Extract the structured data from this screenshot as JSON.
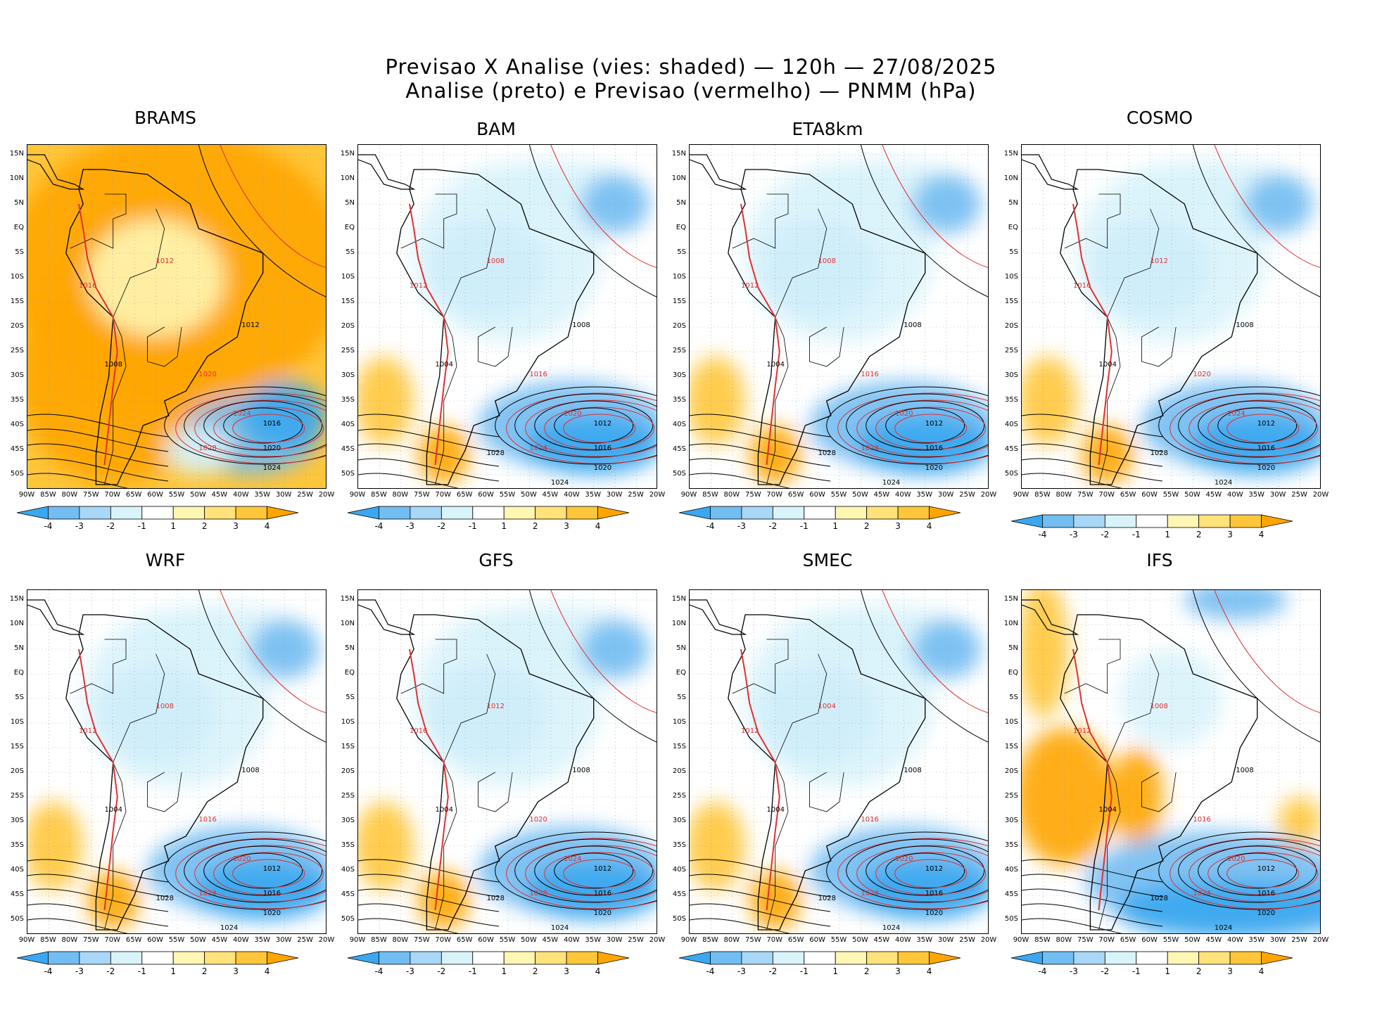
{
  "title": {
    "line1": "Previsao X Analise (vies: shaded) — 120h — 27/08/2025",
    "line2": "Analise (preto) e Previsao (vermelho) — PNMM (hPa)"
  },
  "colors": {
    "neg4": "#3aa7f0",
    "neg3": "#72bdf2",
    "neg2": "#a8d7f7",
    "neg1": "#d9f3fb",
    "zero": "#ffffff",
    "pos1": "#fff6b3",
    "pos2": "#ffe27a",
    "pos3": "#ffc63a",
    "pos4": "#ffa500",
    "analysis_contour": "#000000",
    "forecast_contour": "#e03030"
  },
  "axes": {
    "lat_labels": [
      "15N",
      "10N",
      "5N",
      "EQ",
      "5S",
      "10S",
      "15S",
      "20S",
      "25S",
      "30S",
      "35S",
      "40S",
      "45S",
      "50S"
    ],
    "lon_labels": [
      "90W",
      "85W",
      "80W",
      "75W",
      "70W",
      "65W",
      "60W",
      "55W",
      "50W",
      "45W",
      "40W",
      "35W",
      "30W",
      "25W",
      "20W"
    ]
  },
  "colorbar": {
    "ticks": [
      "-4",
      "-3",
      "-2",
      "-1",
      "1",
      "2",
      "3",
      "4"
    ]
  },
  "chart_data": [
    {
      "type": "heatmap",
      "model": "BRAMS",
      "title": "BRAMS",
      "bias_tendency": "warm",
      "analysis_labels": [
        "1008",
        "1012",
        "1016",
        "1020",
        "1024"
      ],
      "forecast_labels": [
        "1012",
        "1016",
        "1020",
        "1024",
        "1028"
      ]
    },
    {
      "type": "heatmap",
      "model": "BAM",
      "title": "BAM",
      "bias_tendency": "cool",
      "analysis_labels": [
        "1004",
        "1008",
        "1012",
        "1016",
        "1020",
        "1024",
        "1028"
      ],
      "forecast_labels": [
        "1008",
        "1012",
        "1016",
        "1020",
        "1024"
      ]
    },
    {
      "type": "heatmap",
      "model": "ETA8km",
      "title": "ETA8km",
      "bias_tendency": "cool",
      "analysis_labels": [
        "1004",
        "1008",
        "1012",
        "1016",
        "1020",
        "1024",
        "1028"
      ],
      "forecast_labels": [
        "1008",
        "1012",
        "1016",
        "1020",
        "1024"
      ]
    },
    {
      "type": "heatmap",
      "model": "COSMO",
      "title": "COSMO",
      "bias_tendency": "cool",
      "analysis_labels": [
        "1004",
        "1008",
        "1012",
        "1016",
        "1020",
        "1024",
        "1028"
      ],
      "forecast_labels": [
        "1012",
        "1016",
        "1020",
        "1024"
      ]
    },
    {
      "type": "heatmap",
      "model": "WRF",
      "title": "WRF",
      "bias_tendency": "cool",
      "analysis_labels": [
        "1004",
        "1008",
        "1012",
        "1016",
        "1020",
        "1024",
        "1028"
      ],
      "forecast_labels": [
        "1008",
        "1012",
        "1016",
        "1020",
        "1024"
      ]
    },
    {
      "type": "heatmap",
      "model": "GFS",
      "title": "GFS",
      "bias_tendency": "cool",
      "analysis_labels": [
        "1004",
        "1008",
        "1012",
        "1016",
        "1020",
        "1024",
        "1028"
      ],
      "forecast_labels": [
        "1012",
        "1016",
        "1020",
        "1024",
        "1028"
      ]
    },
    {
      "type": "heatmap",
      "model": "SMEC",
      "title": "SMEC",
      "bias_tendency": "cool",
      "analysis_labels": [
        "1004",
        "1008",
        "1012",
        "1016",
        "1020",
        "1024",
        "1028"
      ],
      "forecast_labels": [
        "1004",
        "1012",
        "1016",
        "1020",
        "1024"
      ]
    },
    {
      "type": "heatmap",
      "model": "IFS",
      "title": "IFS",
      "bias_tendency": "mixed",
      "analysis_labels": [
        "1004",
        "1008",
        "1012",
        "1016",
        "1020",
        "1024",
        "1028"
      ],
      "forecast_labels": [
        "1008",
        "1012",
        "1016",
        "1020",
        "1024"
      ]
    }
  ]
}
